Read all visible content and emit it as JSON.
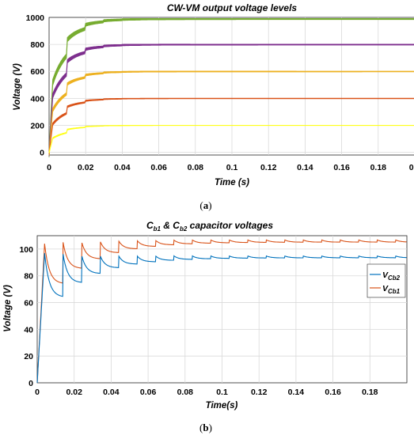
{
  "chart_data": [
    {
      "type": "line",
      "title": "CW-VM output voltage levels",
      "xlabel": "Time (s)",
      "ylabel": "Voltage (V)",
      "xlim": [
        0,
        0.2
      ],
      "ylim": [
        -20,
        1000
      ],
      "xticks": [
        "0",
        "0.02",
        "0.04",
        "0.06",
        "0.08",
        "0.1",
        "0.12",
        "0.14",
        "0.16",
        "0.18",
        "0.2"
      ],
      "yticks": [
        "0",
        "200",
        "400",
        "600",
        "800",
        "1000"
      ],
      "grid": true,
      "legend": "none",
      "caption": "a",
      "series": [
        {
          "color": "#ffff19",
          "final": 200
        },
        {
          "color": "#d95319",
          "final": 400
        },
        {
          "color": "#edb120",
          "final": 600
        },
        {
          "color": "#7e2f8e",
          "final": 800
        },
        {
          "color": "#77ac30",
          "final": 990
        }
      ]
    },
    {
      "type": "line",
      "title_parts": [
        "C",
        "b1",
        " & C",
        "b2",
        " capacitor voltages"
      ],
      "xlabel": "Time(s)",
      "ylabel": "Voltage (V)",
      "xlim": [
        0,
        0.2
      ],
      "ylim": [
        0,
        110
      ],
      "xticks": [
        "0",
        "0.02",
        "0.04",
        "0.06",
        "0.08",
        "0.1",
        "0.12",
        "0.14",
        "0.16",
        "0.18"
      ],
      "yticks": [
        "0",
        "20",
        "40",
        "60",
        "80",
        "100"
      ],
      "grid": true,
      "legend": "right-middle",
      "caption": "b",
      "series": [
        {
          "label_main": "V",
          "label_sub": "Cb2",
          "color": "#0072bd",
          "peak": 97,
          "final": 94
        },
        {
          "label_main": "V",
          "label_sub": "Cb1",
          "color": "#d95319",
          "peak": 104,
          "final": 106
        }
      ]
    }
  ]
}
